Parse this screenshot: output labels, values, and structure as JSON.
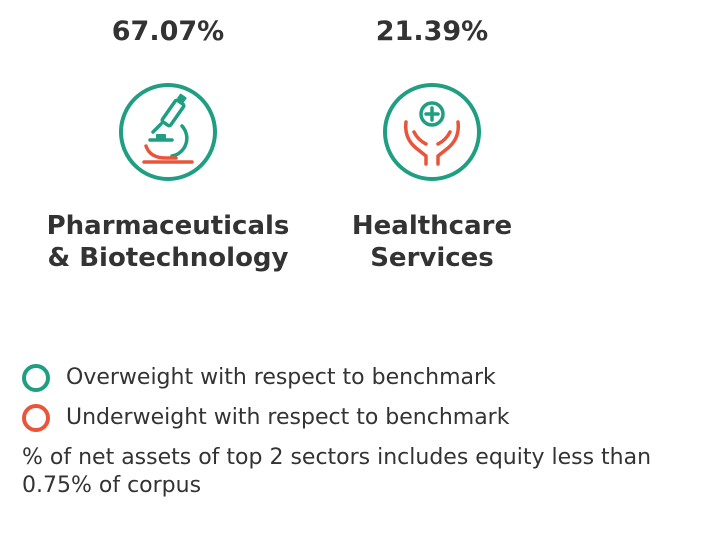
{
  "sectors": [
    {
      "percent": "67.07%",
      "name_line1": "Pharmaceuticals",
      "name_line2": "& Biotechnology",
      "icon": "microscope-icon",
      "weighting": "overweight"
    },
    {
      "percent": "21.39%",
      "name_line1": "Healthcare",
      "name_line2": "Services",
      "icon": "caring-hands-cross-icon",
      "weighting": "overweight"
    }
  ],
  "legend": {
    "overweight": "Overweight with respect to benchmark",
    "underweight": "Underweight with respect to benchmark"
  },
  "footnote": "% of net assets of top 2 sectors includes equity less than 0.75% of corpus",
  "colors": {
    "overweight": "#1f9e82",
    "underweight": "#e8553a",
    "text": "#333333"
  }
}
